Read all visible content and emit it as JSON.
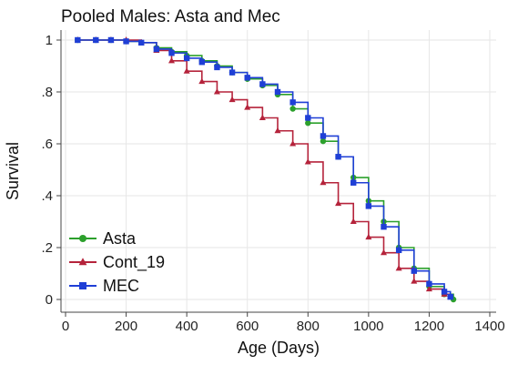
{
  "chart_data": {
    "type": "line",
    "title": "Pooled Males: Asta and Mec",
    "xlabel": "Age (Days)",
    "ylabel": "Survival",
    "xlim": [
      0,
      1400
    ],
    "ylim": [
      0,
      1
    ],
    "xticks": [
      0,
      200,
      400,
      600,
      800,
      1000,
      1200,
      1400
    ],
    "xtick_labels": [
      "0",
      "200",
      "400",
      "600",
      "800",
      "1000",
      "1200",
      "1400"
    ],
    "yticks": [
      0,
      0.2,
      0.4,
      0.6,
      0.8,
      1
    ],
    "ytick_labels": [
      "0",
      ".2",
      ".4",
      ".6",
      ".8",
      "1"
    ],
    "grid": true,
    "legend_position": "bottom-left",
    "series": [
      {
        "name": "Asta",
        "color": "#2ca02c",
        "marker": "circle",
        "x": [
          40,
          100,
          150,
          200,
          250,
          300,
          350,
          400,
          450,
          500,
          550,
          600,
          650,
          700,
          750,
          800,
          850,
          900,
          950,
          1000,
          1050,
          1100,
          1150,
          1200,
          1250,
          1280
        ],
        "y": [
          1.0,
          1.0,
          1.0,
          0.995,
          0.99,
          0.97,
          0.955,
          0.94,
          0.92,
          0.9,
          0.875,
          0.85,
          0.825,
          0.79,
          0.735,
          0.68,
          0.61,
          0.55,
          0.47,
          0.38,
          0.3,
          0.2,
          0.12,
          0.05,
          0.02,
          0.0
        ]
      },
      {
        "name": "Cont_19",
        "color": "#b5233b",
        "marker": "triangle",
        "x": [
          40,
          100,
          150,
          200,
          250,
          300,
          350,
          400,
          450,
          500,
          550,
          600,
          650,
          700,
          750,
          800,
          850,
          900,
          950,
          1000,
          1050,
          1100,
          1150,
          1200,
          1250,
          1270
        ],
        "y": [
          1.0,
          1.0,
          1.0,
          1.0,
          0.99,
          0.96,
          0.92,
          0.88,
          0.84,
          0.8,
          0.77,
          0.74,
          0.7,
          0.65,
          0.6,
          0.53,
          0.45,
          0.37,
          0.3,
          0.24,
          0.18,
          0.12,
          0.07,
          0.04,
          0.02,
          0.01
        ]
      },
      {
        "name": "MEC",
        "color": "#1f3fd6",
        "marker": "square",
        "x": [
          40,
          100,
          150,
          200,
          250,
          300,
          350,
          400,
          450,
          500,
          550,
          600,
          650,
          700,
          750,
          800,
          850,
          900,
          950,
          1000,
          1050,
          1100,
          1150,
          1200,
          1250,
          1270
        ],
        "y": [
          1.0,
          1.0,
          1.0,
          0.995,
          0.99,
          0.965,
          0.95,
          0.93,
          0.915,
          0.895,
          0.875,
          0.855,
          0.83,
          0.8,
          0.76,
          0.7,
          0.63,
          0.55,
          0.45,
          0.36,
          0.28,
          0.19,
          0.11,
          0.06,
          0.03,
          0.01
        ]
      }
    ]
  }
}
